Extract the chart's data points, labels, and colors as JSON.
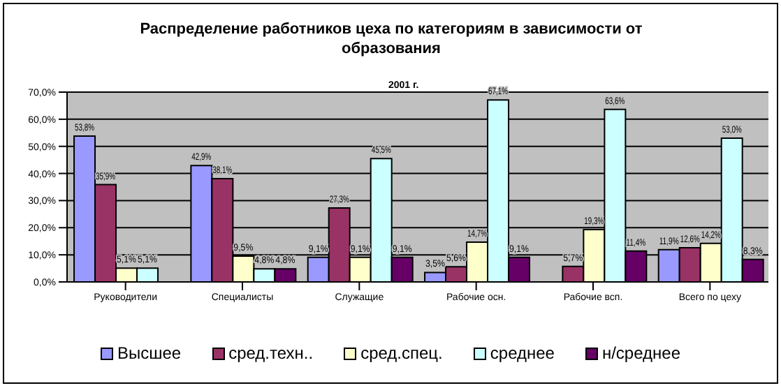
{
  "chart_data": {
    "type": "bar",
    "title": "Распределение работников цеха по категориям в зависимости от образования",
    "annotations": [
      "2001 г."
    ],
    "categories": [
      "Руководители",
      "Специалисты",
      "Служащие",
      "Рабочие осн.",
      "Рабочие всп.",
      "Всего по цеху"
    ],
    "series": [
      {
        "name": "Высшее",
        "color": "#9999ff",
        "values": [
          53.8,
          42.9,
          9.1,
          3.5,
          null,
          11.9
        ],
        "value_labels": [
          "53,8%",
          "42,9%",
          "9,1%",
          "3,5%",
          null,
          "11,9%"
        ]
      },
      {
        "name": "сред.техн..",
        "color": "#993366",
        "values": [
          35.9,
          38.1,
          27.3,
          5.6,
          5.7,
          12.6
        ],
        "value_labels": [
          "35,9%",
          "38,1%",
          "27,3%",
          "5,6%",
          "5,7%",
          "12,6%"
        ]
      },
      {
        "name": "сред.спец.",
        "color": "#ffffcc",
        "values": [
          5.1,
          9.5,
          9.1,
          14.7,
          19.3,
          14.2
        ],
        "value_labels": [
          "5,1%",
          "9,5%",
          "9,1%",
          "14,7%",
          "19,3%",
          "14,2%"
        ]
      },
      {
        "name": "среднее",
        "color": "#ccffff",
        "values": [
          5.1,
          4.8,
          45.5,
          67.1,
          63.6,
          53.0
        ],
        "value_labels": [
          "5,1%",
          "4,8%",
          "45,5%",
          "67,1%",
          "63,6%",
          "53,0%"
        ]
      },
      {
        "name": "н/среднее",
        "color": "#660066",
        "values": [
          null,
          4.8,
          9.1,
          9.1,
          11.4,
          8.3
        ],
        "value_labels": [
          null,
          "4,8%",
          "9,1%",
          "9,1%",
          "11,4%",
          "8,3%"
        ]
      }
    ],
    "ylim": [
      0,
      70
    ],
    "yticks": [
      {
        "value": 0,
        "label": "0,0%"
      },
      {
        "value": 10,
        "label": "10,0%"
      },
      {
        "value": 20,
        "label": "20,0%"
      },
      {
        "value": 30,
        "label": "30,0%"
      },
      {
        "value": 40,
        "label": "40,0%"
      },
      {
        "value": 50,
        "label": "50,0%"
      },
      {
        "value": 60,
        "label": "60,0%"
      },
      {
        "value": 70,
        "label": "70,0%"
      }
    ],
    "grid": "y",
    "legend": "bottom"
  }
}
